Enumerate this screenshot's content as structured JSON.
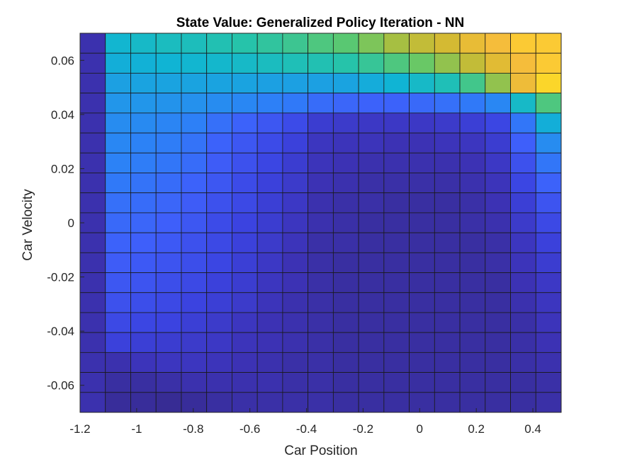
{
  "chart_data": {
    "type": "heatmap",
    "title": "State Value: Generalized Policy Iteration - NN",
    "xlabel": "Car Position",
    "ylabel": "Car Velocity",
    "xlim": [
      -1.2,
      0.5
    ],
    "ylim": [
      -0.07,
      0.07
    ],
    "xticks": [
      -1.2,
      -1,
      -0.8,
      -0.6,
      -0.4,
      -0.2,
      0,
      0.2,
      0.4
    ],
    "xtick_labels": [
      "-1.2",
      "-1",
      "-0.8",
      "-0.6",
      "-0.4",
      "-0.2",
      "0",
      "0.2",
      "0.4"
    ],
    "yticks": [
      -0.06,
      -0.04,
      -0.02,
      0,
      0.02,
      0.04,
      0.06
    ],
    "ytick_labels": [
      "-0.06",
      "-0.04",
      "-0.02",
      "0",
      "0.02",
      "0.04",
      "0.06"
    ],
    "colormap": "parula",
    "grid_cols": 19,
    "grid_rows": 19,
    "cells_top_to_bottom": [
      [
        0.06,
        0.56,
        0.58,
        0.6,
        0.61,
        0.63,
        0.65,
        0.67,
        0.69,
        0.72,
        0.74,
        0.78,
        0.82,
        0.86,
        0.89,
        0.92,
        0.94,
        0.96,
        0.96
      ],
      [
        0.06,
        0.53,
        0.54,
        0.55,
        0.56,
        0.57,
        0.58,
        0.6,
        0.62,
        0.63,
        0.65,
        0.68,
        0.72,
        0.76,
        0.8,
        0.86,
        0.91,
        0.94,
        0.96
      ],
      [
        0.06,
        0.48,
        0.49,
        0.49,
        0.49,
        0.49,
        0.49,
        0.48,
        0.48,
        0.48,
        0.49,
        0.52,
        0.55,
        0.58,
        0.62,
        0.7,
        0.8,
        0.93,
        0.97
      ],
      [
        0.06,
        0.44,
        0.44,
        0.43,
        0.42,
        0.4,
        0.38,
        0.35,
        0.33,
        0.29,
        0.27,
        0.26,
        0.26,
        0.28,
        0.3,
        0.33,
        0.38,
        0.58,
        0.72
      ],
      [
        0.06,
        0.4,
        0.39,
        0.37,
        0.35,
        0.3,
        0.26,
        0.22,
        0.18,
        0.12,
        0.11,
        0.1,
        0.1,
        0.1,
        0.11,
        0.13,
        0.16,
        0.32,
        0.53
      ],
      [
        0.06,
        0.38,
        0.36,
        0.34,
        0.31,
        0.26,
        0.22,
        0.18,
        0.14,
        0.09,
        0.08,
        0.08,
        0.07,
        0.07,
        0.08,
        0.09,
        0.12,
        0.25,
        0.4
      ],
      [
        0.06,
        0.36,
        0.34,
        0.32,
        0.29,
        0.24,
        0.2,
        0.16,
        0.12,
        0.08,
        0.07,
        0.06,
        0.06,
        0.06,
        0.06,
        0.07,
        0.1,
        0.2,
        0.32
      ],
      [
        0.06,
        0.33,
        0.31,
        0.29,
        0.26,
        0.22,
        0.18,
        0.14,
        0.11,
        0.07,
        0.06,
        0.05,
        0.05,
        0.05,
        0.05,
        0.06,
        0.08,
        0.16,
        0.26
      ],
      [
        0.06,
        0.3,
        0.29,
        0.27,
        0.24,
        0.2,
        0.17,
        0.13,
        0.1,
        0.06,
        0.05,
        0.05,
        0.04,
        0.04,
        0.04,
        0.05,
        0.07,
        0.13,
        0.21
      ],
      [
        0.06,
        0.28,
        0.27,
        0.25,
        0.22,
        0.18,
        0.15,
        0.12,
        0.09,
        0.06,
        0.05,
        0.04,
        0.04,
        0.04,
        0.04,
        0.05,
        0.06,
        0.11,
        0.17
      ],
      [
        0.06,
        0.26,
        0.25,
        0.23,
        0.2,
        0.17,
        0.14,
        0.11,
        0.08,
        0.05,
        0.05,
        0.04,
        0.04,
        0.04,
        0.04,
        0.04,
        0.05,
        0.09,
        0.14
      ],
      [
        0.06,
        0.24,
        0.23,
        0.21,
        0.19,
        0.16,
        0.13,
        0.1,
        0.07,
        0.05,
        0.04,
        0.04,
        0.04,
        0.04,
        0.04,
        0.04,
        0.05,
        0.08,
        0.12
      ],
      [
        0.06,
        0.22,
        0.21,
        0.19,
        0.17,
        0.14,
        0.12,
        0.09,
        0.07,
        0.05,
        0.04,
        0.04,
        0.04,
        0.04,
        0.04,
        0.04,
        0.04,
        0.07,
        0.1
      ],
      [
        0.06,
        0.2,
        0.19,
        0.17,
        0.15,
        0.13,
        0.11,
        0.08,
        0.06,
        0.05,
        0.04,
        0.04,
        0.04,
        0.04,
        0.04,
        0.04,
        0.04,
        0.06,
        0.09
      ],
      [
        0.06,
        0.17,
        0.16,
        0.15,
        0.13,
        0.11,
        0.09,
        0.07,
        0.06,
        0.05,
        0.04,
        0.04,
        0.04,
        0.04,
        0.04,
        0.04,
        0.04,
        0.05,
        0.08
      ],
      [
        0.06,
        0.14,
        0.13,
        0.12,
        0.11,
        0.1,
        0.08,
        0.07,
        0.06,
        0.05,
        0.04,
        0.04,
        0.04,
        0.04,
        0.04,
        0.04,
        0.04,
        0.05,
        0.07
      ],
      [
        0.06,
        0.06,
        0.08,
        0.09,
        0.09,
        0.08,
        0.07,
        0.06,
        0.05,
        0.05,
        0.04,
        0.04,
        0.04,
        0.04,
        0.04,
        0.04,
        0.04,
        0.05,
        0.06
      ],
      [
        0.06,
        0.04,
        0.04,
        0.05,
        0.06,
        0.06,
        0.06,
        0.06,
        0.05,
        0.05,
        0.04,
        0.04,
        0.04,
        0.04,
        0.04,
        0.04,
        0.04,
        0.04,
        0.05
      ],
      [
        0.06,
        0.03,
        0.03,
        0.02,
        0.03,
        0.04,
        0.05,
        0.05,
        0.05,
        0.05,
        0.04,
        0.04,
        0.04,
        0.04,
        0.04,
        0.04,
        0.04,
        0.04,
        0.05
      ]
    ]
  }
}
